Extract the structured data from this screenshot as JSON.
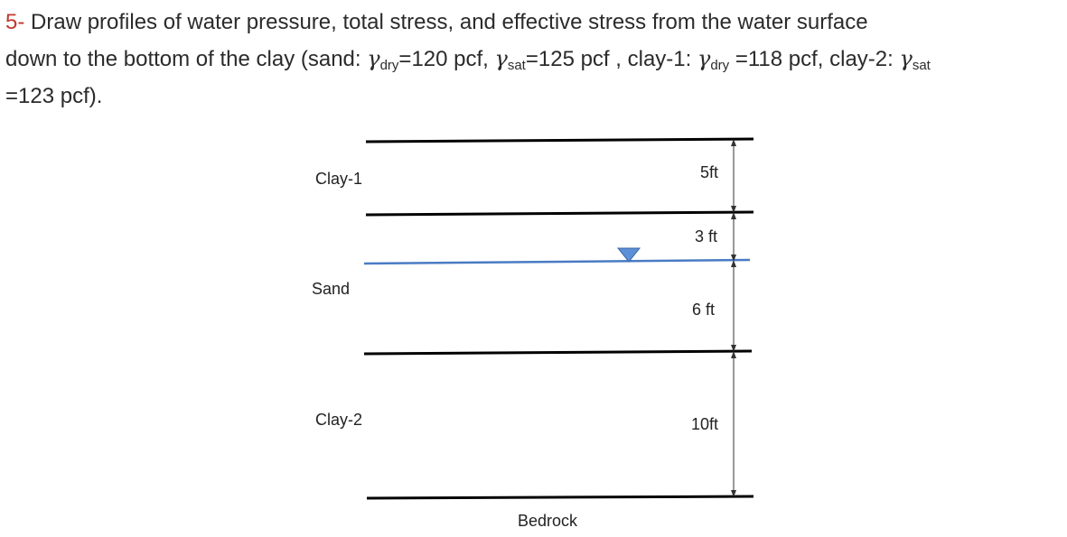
{
  "problem": {
    "number": "5-",
    "line1": "Draw profiles of water pressure, total stress, and effective stress from the water surface",
    "line2_a": "down to the bottom of the clay (sand: ",
    "gamma": "γ",
    "sub_dry": "dry",
    "sub_sat": "sat",
    "sand_dry": "=120 pcf, ",
    "sand_sat": "=125 pcf , clay-1: ",
    "clay1_dry": " =118 pcf, clay-2: ",
    "line3": "=123 pcf)."
  },
  "diagram": {
    "layers": [
      {
        "name": "Clay-1",
        "thickness_label": "5ft"
      },
      {
        "name": "Sand",
        "thickness_label_above_wt": "3 ft",
        "thickness_label_below_wt": "6 ft"
      },
      {
        "name": "Clay-2",
        "thickness_label": "10ft"
      }
    ],
    "bottom_label": "Bedrock",
    "colors": {
      "boundary": "#000000",
      "water_table": "#4a7bc4",
      "water_marker": "#5b8fd6",
      "dimension": "#333333",
      "problem_number": "#c0392b"
    }
  }
}
